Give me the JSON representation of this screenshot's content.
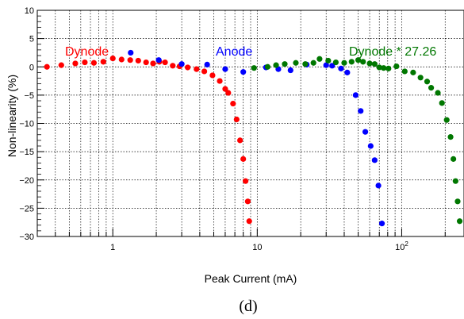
{
  "chart_data": {
    "type": "scatter",
    "xlabel": "Peak Current (mA)",
    "ylabel": "Non-linearity (%)",
    "xscale": "log",
    "xlim": [
      0.3,
      270
    ],
    "ylim": [
      -30,
      10
    ],
    "yticks": [
      10,
      5,
      0,
      -5,
      -10,
      -15,
      -20,
      -25,
      -30
    ],
    "xtick_labels": [
      {
        "x": 1,
        "base": "1",
        "exp": ""
      },
      {
        "x": 10,
        "base": "10",
        "exp": ""
      },
      {
        "x": 100,
        "base": "10",
        "exp": "2"
      }
    ],
    "grid": true,
    "caption": "(d)",
    "series": [
      {
        "name": "Dynode",
        "color": "#ff0000",
        "points": [
          [
            0.35,
            0.0
          ],
          [
            0.44,
            0.3
          ],
          [
            0.55,
            0.6
          ],
          [
            0.64,
            0.8
          ],
          [
            0.74,
            0.7
          ],
          [
            0.86,
            0.9
          ],
          [
            1.0,
            1.5
          ],
          [
            1.15,
            1.3
          ],
          [
            1.32,
            1.2
          ],
          [
            1.5,
            1.1
          ],
          [
            1.7,
            0.8
          ],
          [
            1.9,
            0.6
          ],
          [
            2.1,
            0.9
          ],
          [
            2.3,
            0.8
          ],
          [
            2.6,
            0.2
          ],
          [
            2.9,
            0.1
          ],
          [
            3.3,
            -0.1
          ],
          [
            3.8,
            -0.4
          ],
          [
            4.3,
            -0.8
          ],
          [
            4.9,
            -1.5
          ],
          [
            5.5,
            -2.5
          ],
          [
            6.0,
            -3.9
          ],
          [
            6.3,
            -4.6
          ],
          [
            6.8,
            -6.5
          ],
          [
            7.2,
            -9.3
          ],
          [
            7.6,
            -13.0
          ],
          [
            8.0,
            -16.3
          ],
          [
            8.3,
            -20.2
          ],
          [
            8.6,
            -23.8
          ],
          [
            8.8,
            -27.3
          ]
        ]
      },
      {
        "name": "Anode",
        "color": "#0000ff",
        "points": [
          [
            1.33,
            2.5
          ],
          [
            2.08,
            1.2
          ],
          [
            3.0,
            0.5
          ],
          [
            4.5,
            0.4
          ],
          [
            6.0,
            -0.4
          ],
          [
            8.0,
            -0.9
          ],
          [
            11.5,
            -0.1
          ],
          [
            14.0,
            -0.4
          ],
          [
            17.0,
            -0.6
          ],
          [
            22.0,
            0.4
          ],
          [
            30.0,
            0.3
          ],
          [
            33.0,
            0.2
          ],
          [
            38.0,
            -0.3
          ],
          [
            42.0,
            -1.0
          ],
          [
            48.0,
            -5.0
          ],
          [
            52.0,
            -7.8
          ],
          [
            56.0,
            -11.5
          ],
          [
            61.0,
            -14.0
          ],
          [
            65.0,
            -16.5
          ],
          [
            69.0,
            -21.0
          ],
          [
            73.0,
            -27.7
          ]
        ]
      },
      {
        "name": "Dynode * 27.26",
        "color": "#007700",
        "points": [
          [
            9.5,
            -0.2
          ],
          [
            11.8,
            0.0
          ],
          [
            13.5,
            0.3
          ],
          [
            15.5,
            0.5
          ],
          [
            18.5,
            0.7
          ],
          [
            21.5,
            0.5
          ],
          [
            24.5,
            0.7
          ],
          [
            27.0,
            1.4
          ],
          [
            31.0,
            1.1
          ],
          [
            35.0,
            0.8
          ],
          [
            40.0,
            0.7
          ],
          [
            45.0,
            0.9
          ],
          [
            50.0,
            1.2
          ],
          [
            54.0,
            0.9
          ],
          [
            60.0,
            0.6
          ],
          [
            65.0,
            0.5
          ],
          [
            70.0,
            -0.1
          ],
          [
            75.0,
            -0.2
          ],
          [
            81.0,
            -0.3
          ],
          [
            92.0,
            0.1
          ],
          [
            105.0,
            -0.8
          ],
          [
            120.0,
            -1.0
          ],
          [
            135.0,
            -1.9
          ],
          [
            150.0,
            -2.6
          ],
          [
            160.0,
            -3.7
          ],
          [
            178.0,
            -4.6
          ],
          [
            190.0,
            -6.4
          ],
          [
            205.0,
            -9.4
          ],
          [
            218.0,
            -12.4
          ],
          [
            228.0,
            -16.3
          ],
          [
            236.0,
            -20.2
          ],
          [
            244.0,
            -23.8
          ],
          [
            252.0,
            -27.3
          ]
        ]
      }
    ]
  }
}
